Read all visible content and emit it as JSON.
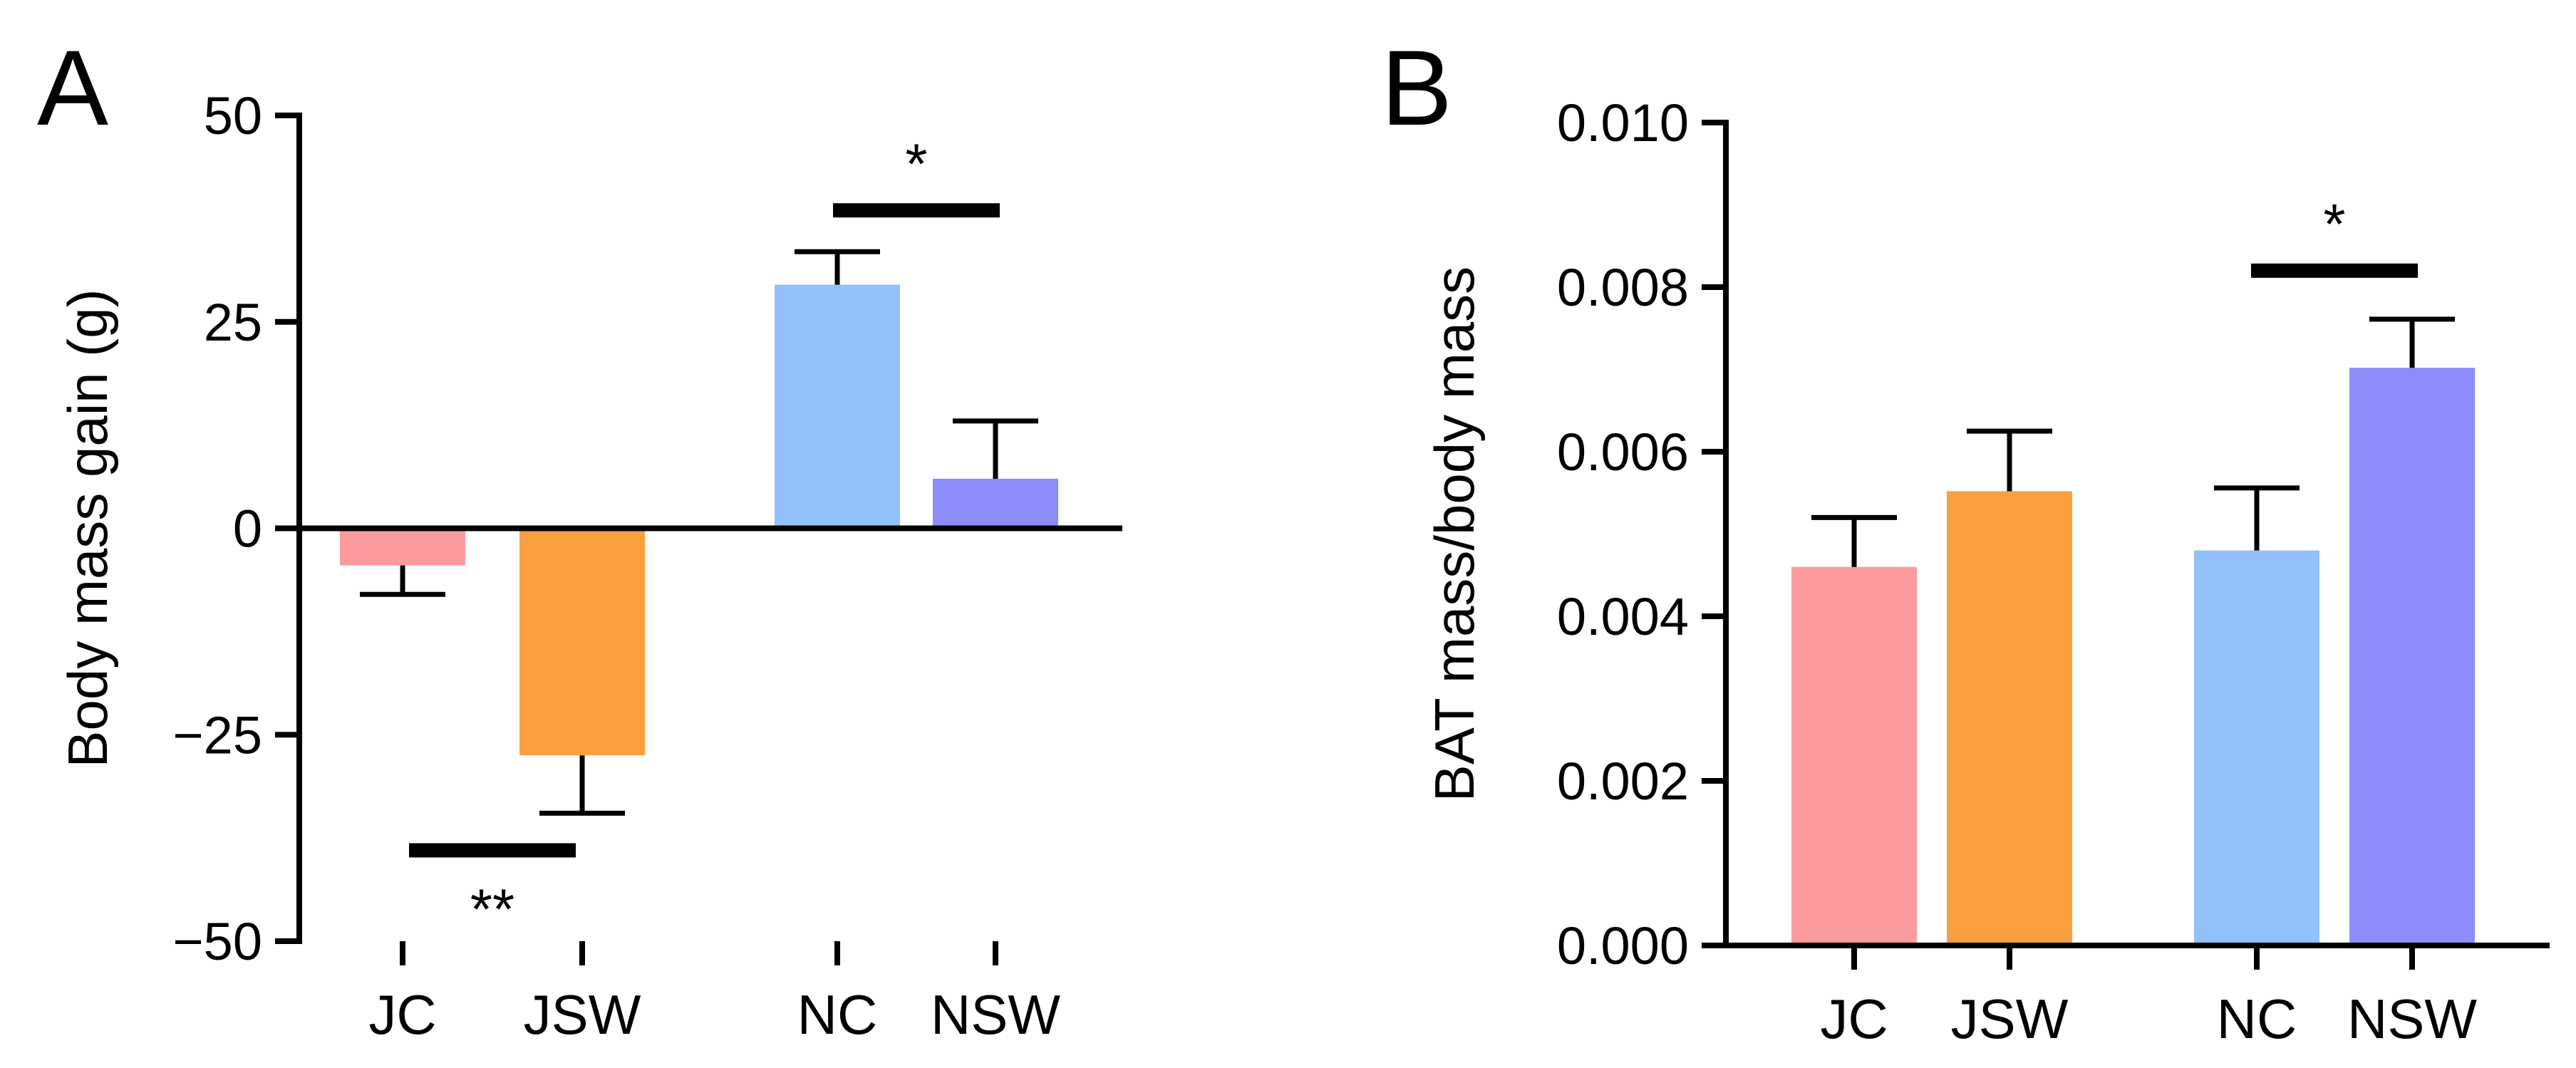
{
  "chart_data": [
    {
      "type": "bar",
      "panel_label": "A",
      "title": "",
      "xlabel": "",
      "ylabel": "Body mass gain (g)",
      "ylim": [
        -50,
        50
      ],
      "yticks": [
        50,
        25,
        0,
        -25,
        -50
      ],
      "ytick_labels": [
        "50",
        "25",
        "0",
        "−25",
        "−50"
      ],
      "categories": [
        "JC",
        "JSW",
        "NC",
        "NSW"
      ],
      "values": [
        -4.5,
        -27.5,
        29.5,
        6
      ],
      "errors": [
        3.5,
        7,
        4,
        7
      ],
      "colors": [
        "#fc9b9e",
        "#fba040",
        "#93c1fb",
        "#8d8cfb"
      ],
      "significance": [
        {
          "between": [
            "JC",
            "JSW"
          ],
          "label": "**",
          "y": -39,
          "position": "below"
        },
        {
          "between": [
            "NC",
            "NSW"
          ],
          "label": "*",
          "y": 38.5,
          "position": "above"
        }
      ]
    },
    {
      "type": "bar",
      "panel_label": "B",
      "title": "",
      "xlabel": "",
      "ylabel": "BAT mass/body mass",
      "ylim": [
        0,
        0.01
      ],
      "yticks": [
        0.01,
        0.008,
        0.006,
        0.004,
        0.002,
        0
      ],
      "ytick_labels": [
        "0.010",
        "0.008",
        "0.006",
        "0.004",
        "0.002",
        "0.000"
      ],
      "categories": [
        "JC",
        "JSW",
        "NC",
        "NSW"
      ],
      "values": [
        0.0046,
        0.00552,
        0.0048,
        0.00702
      ],
      "errors": [
        0.0006,
        0.00073,
        0.00076,
        0.00059
      ],
      "colors": [
        "#fc9b9e",
        "#fba040",
        "#93c1fb",
        "#8d8cfb"
      ],
      "significance": [
        {
          "between": [
            "NC",
            "NSW"
          ],
          "label": "*",
          "y": 0.0082,
          "position": "above"
        }
      ]
    }
  ]
}
